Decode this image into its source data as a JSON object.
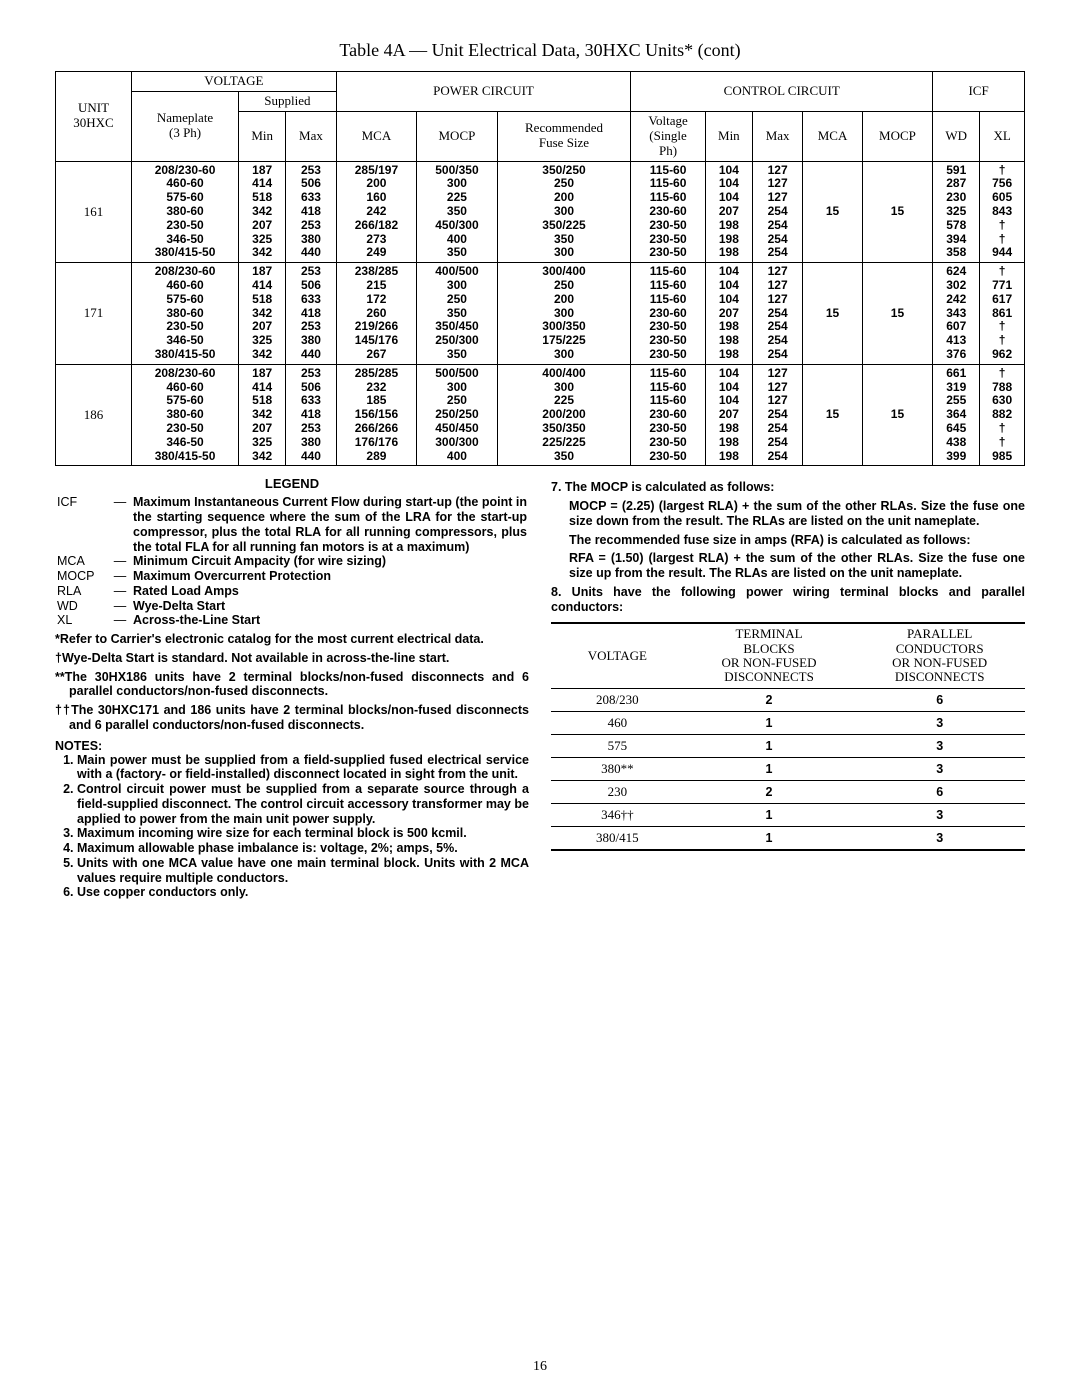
{
  "title": "Table 4A — Unit Electrical Data, 30HXC Units* (cont)",
  "page_number": "16",
  "main_table": {
    "headers": {
      "unit": "UNIT\n30HXC",
      "voltage": "VOLTAGE",
      "nameplate": "Nameplate\n(3 Ph)",
      "supplied": "Supplied",
      "min": "Min",
      "max": "Max",
      "power_circuit": "POWER CIRCUIT",
      "mca": "MCA",
      "mocp": "MOCP",
      "rec_fuse": "Recommended\nFuse Size",
      "control_circuit": "CONTROL CIRCUIT",
      "volt_single": "Voltage\n(Single\nPh)",
      "cc_min": "Min",
      "cc_max": "Max",
      "cc_mca": "MCA",
      "cc_mocp": "MOCP",
      "icf": "ICF",
      "wd": "WD",
      "xl": "XL"
    },
    "rows": [
      {
        "unit": "161",
        "nameplate": "208/230-60\n460-60\n575-60\n380-60\n230-50\n346-50\n380/415-50",
        "smin": "187\n414\n518\n342\n207\n325\n342",
        "smax": "253\n506\n633\n418\n253\n380\n440",
        "mca": "285/197\n200\n160\n242\n266/182\n273\n249",
        "mocp": "500/350\n300\n225\n350\n450/300\n400\n350",
        "fuse": "350/250\n250\n200\n300\n350/225\n350\n300",
        "vsp": "115-60\n115-60\n115-60\n230-60\n230-50\n230-50\n230-50",
        "cmin": "104\n104\n104\n207\n198\n198\n198",
        "cmax": "127\n127\n127\n254\n254\n254\n254",
        "cmca": "15",
        "cmocp": "15",
        "wd": "591\n287\n230\n325\n578\n394\n358",
        "xl": "†\n756\n605\n843\n†\n†\n944"
      },
      {
        "unit": "171",
        "nameplate": "208/230-60\n460-60\n575-60\n380-60\n230-50\n346-50\n380/415-50",
        "smin": "187\n414\n518\n342\n207\n325\n342",
        "smax": "253\n506\n633\n418\n253\n380\n440",
        "mca": "238/285\n215\n172\n260\n219/266\n145/176\n267",
        "mocp": "400/500\n300\n250\n350\n350/450\n250/300\n350",
        "fuse": "300/400\n250\n200\n300\n300/350\n175/225\n300",
        "vsp": "115-60\n115-60\n115-60\n230-60\n230-50\n230-50\n230-50",
        "cmin": "104\n104\n104\n207\n198\n198\n198",
        "cmax": "127\n127\n127\n254\n254\n254\n254",
        "cmca": "15",
        "cmocp": "15",
        "wd": "624\n302\n242\n343\n607\n413\n376",
        "xl": "†\n771\n617\n861\n†\n†\n962"
      },
      {
        "unit": "186",
        "nameplate": "208/230-60\n460-60\n575-60\n380-60\n230-50\n346-50\n380/415-50",
        "smin": "187\n414\n518\n342\n207\n325\n342",
        "smax": "253\n506\n633\n418\n253\n380\n440",
        "mca": "285/285\n232\n185\n156/156\n266/266\n176/176\n289",
        "mocp": "500/500\n300\n250\n250/250\n450/450\n300/300\n400",
        "fuse": "400/400\n300\n225\n200/200\n350/350\n225/225\n350",
        "vsp": "115-60\n115-60\n115-60\n230-60\n230-50\n230-50\n230-50",
        "cmin": "104\n104\n104\n207\n198\n198\n198",
        "cmax": "127\n127\n127\n254\n254\n254\n254",
        "cmca": "15",
        "cmocp": "15",
        "wd": "661\n319\n255\n364\n645\n438\n399",
        "xl": "†\n788\n630\n882\n†\n†\n985"
      }
    ]
  },
  "legend": {
    "title": "LEGEND",
    "items": [
      {
        "abbr": "ICF",
        "def": "Maximum Instantaneous Current Flow during start-up (the point in the starting sequence where the sum of the LRA for the start-up compressor, plus the total RLA for all running compressors, plus the total FLA for all running fan motors is at a maximum)"
      },
      {
        "abbr": "MCA",
        "def": "Minimum Circuit Ampacity (for wire sizing)"
      },
      {
        "abbr": "MOCP",
        "def": "Maximum Overcurrent Protection"
      },
      {
        "abbr": "RLA",
        "def": "Rated Load Amps"
      },
      {
        "abbr": "WD",
        "def": "Wye-Delta Start"
      },
      {
        "abbr": "XL",
        "def": "Across-the-Line Start"
      }
    ],
    "star_notes": [
      "*Refer to Carrier's electronic catalog for the most current electrical data.",
      "†Wye-Delta Start is standard. Not available in across-the-line start.",
      "**The 30HX186 units have 2 terminal blocks/non-fused disconnects and 6 parallel conductors/non-fused disconnects.",
      "††The 30HXC171 and 186 units have 2 terminal blocks/non-fused disconnects and 6 parallel conductors/non-fused disconnects."
    ]
  },
  "notes": {
    "header": "NOTES:",
    "items": [
      "Main power must be supplied from a field-supplied fused electrical service with a (factory- or field-installed) disconnect located in sight from the unit.",
      "Control circuit power must be supplied from a separate source through a field-supplied disconnect. The control circuit accessory transformer may be applied to power from the main unit power supply.",
      "Maximum incoming wire size for each terminal block is 500 kcmil.",
      "Maximum allowable phase imbalance is: voltage, 2%; amps, 5%.",
      "Units with one MCA value have one main terminal block. Units with 2 MCA values require multiple conductors.",
      "Use copper conductors only."
    ]
  },
  "right_col": {
    "n7_lead": "7.  The MOCP is calculated as follows:",
    "n7_body1": "MOCP =  (2.25) (largest RLA) +   the sum of the other RLAs. Size the fuse one size down from the result. The RLAs are listed on the unit nameplate.",
    "n7_body2": "The recommended fuse size in amps (RFA) is calculated as follows:",
    "n7_body3": "RFA =  (1.50) (largest RLA) +   the sum of the other RLAs. Size the fuse one size up from the result. The RLAs are listed on the unit nameplate.",
    "n8": "8.  Units have the following power wiring terminal blocks and parallel conductors:"
  },
  "conduct_table": {
    "headers": {
      "voltage": "VOLTAGE",
      "tb": "TERMINAL\nBLOCKS\nOR NON-FUSED\nDISCONNECTS",
      "pc": "PARALLEL\nCONDUCTORS\nOR NON-FUSED\nDISCONNECTS"
    },
    "rows": [
      {
        "v": "208/230",
        "tb": "2",
        "pc": "6"
      },
      {
        "v": "460",
        "tb": "1",
        "pc": "3"
      },
      {
        "v": "575",
        "tb": "1",
        "pc": "3"
      },
      {
        "v": "380**",
        "tb": "1",
        "pc": "3"
      },
      {
        "v": "230",
        "tb": "2",
        "pc": "6"
      },
      {
        "v": "346††",
        "tb": "1",
        "pc": "3"
      },
      {
        "v": "380/415",
        "tb": "1",
        "pc": "3"
      }
    ]
  }
}
